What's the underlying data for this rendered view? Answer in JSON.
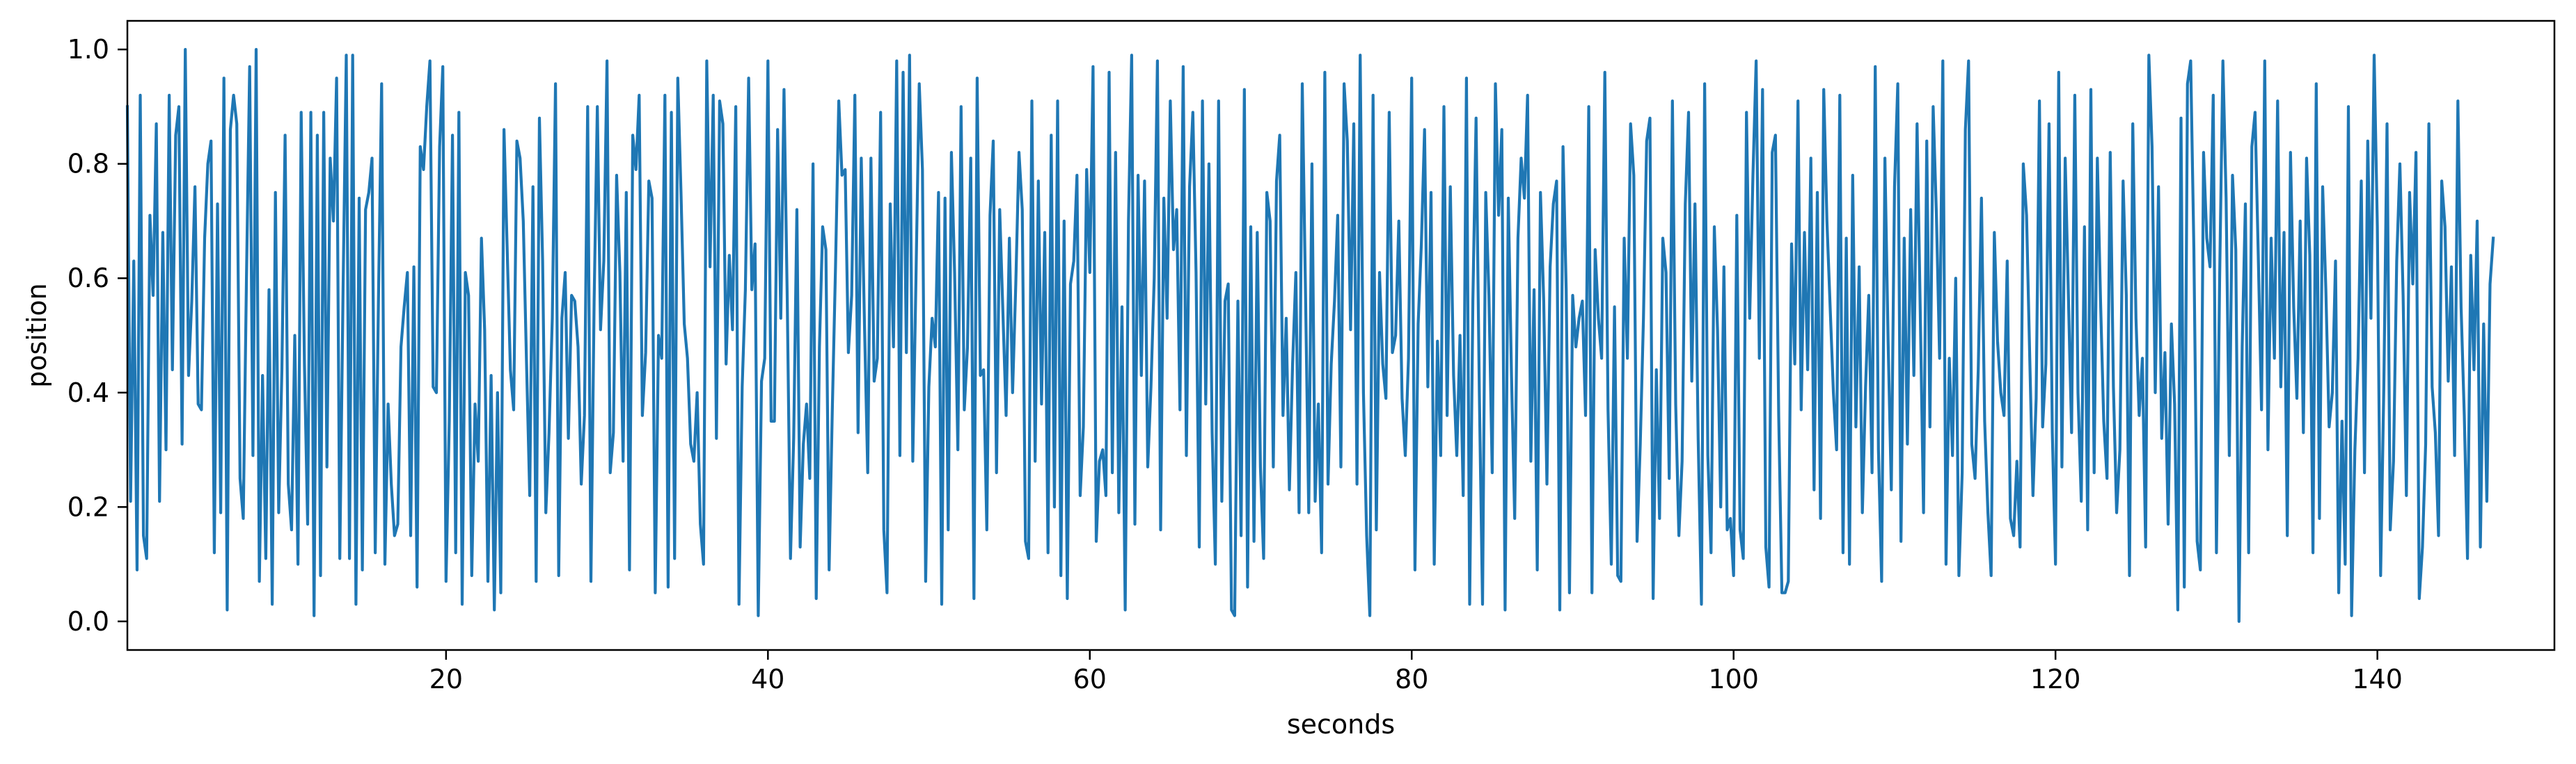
{
  "chart_data": {
    "type": "line",
    "title": "",
    "xlabel": "seconds",
    "ylabel": "position",
    "xlim": [
      0.2,
      151.0
    ],
    "ylim": [
      -0.05,
      1.05
    ],
    "xticks": [
      20,
      40,
      60,
      80,
      100,
      120,
      140
    ],
    "yticks": [
      0.0,
      0.2,
      0.4,
      0.6,
      0.8,
      1.0
    ],
    "xtick_labels": [
      "20",
      "40",
      "60",
      "80",
      "100",
      "120",
      "140"
    ],
    "ytick_labels": [
      "0.0",
      "0.2",
      "0.4",
      "0.6",
      "0.8",
      "1.0"
    ],
    "grid": false,
    "legend": "none",
    "series": [
      {
        "color": "#1f77b4",
        "x_start": 0.2,
        "x_step": 0.2,
        "values": [
          0.9,
          0.21,
          0.63,
          0.09,
          0.92,
          0.15,
          0.11,
          0.71,
          0.57,
          0.87,
          0.21,
          0.68,
          0.3,
          0.92,
          0.44,
          0.85,
          0.9,
          0.31,
          1.0,
          0.43,
          0.56,
          0.76,
          0.38,
          0.37,
          0.67,
          0.8,
          0.84,
          0.12,
          0.73,
          0.19,
          0.95,
          0.02,
          0.86,
          0.92,
          0.87,
          0.25,
          0.18,
          0.6,
          0.97,
          0.29,
          1.0,
          0.07,
          0.43,
          0.11,
          0.58,
          0.03,
          0.75,
          0.19,
          0.44,
          0.85,
          0.24,
          0.16,
          0.5,
          0.1,
          0.89,
          0.45,
          0.17,
          0.89,
          0.01,
          0.85,
          0.08,
          0.89,
          0.27,
          0.81,
          0.7,
          0.95,
          0.11,
          0.58,
          0.99,
          0.11,
          0.99,
          0.03,
          0.74,
          0.09,
          0.72,
          0.75,
          0.81,
          0.12,
          0.56,
          0.94,
          0.1,
          0.38,
          0.24,
          0.15,
          0.17,
          0.48,
          0.55,
          0.61,
          0.15,
          0.62,
          0.06,
          0.83,
          0.79,
          0.9,
          0.98,
          0.41,
          0.4,
          0.83,
          0.97,
          0.07,
          0.35,
          0.85,
          0.12,
          0.89,
          0.03,
          0.61,
          0.57,
          0.08,
          0.38,
          0.28,
          0.67,
          0.51,
          0.07,
          0.43,
          0.02,
          0.4,
          0.05,
          0.86,
          0.65,
          0.44,
          0.37,
          0.84,
          0.81,
          0.7,
          0.45,
          0.22,
          0.76,
          0.07,
          0.88,
          0.63,
          0.19,
          0.33,
          0.53,
          0.94,
          0.08,
          0.53,
          0.61,
          0.32,
          0.57,
          0.56,
          0.48,
          0.24,
          0.36,
          0.9,
          0.07,
          0.56,
          0.9,
          0.51,
          0.63,
          0.98,
          0.26,
          0.33,
          0.78,
          0.61,
          0.28,
          0.75,
          0.09,
          0.85,
          0.79,
          0.92,
          0.36,
          0.47,
          0.77,
          0.74,
          0.05,
          0.5,
          0.46,
          0.92,
          0.06,
          0.89,
          0.11,
          0.95,
          0.75,
          0.52,
          0.46,
          0.31,
          0.28,
          0.4,
          0.17,
          0.1,
          0.98,
          0.62,
          0.92,
          0.32,
          0.91,
          0.87,
          0.45,
          0.64,
          0.51,
          0.9,
          0.03,
          0.41,
          0.58,
          0.95,
          0.58,
          0.66,
          0.01,
          0.42,
          0.46,
          0.98,
          0.35,
          0.35,
          0.86,
          0.53,
          0.93,
          0.56,
          0.11,
          0.32,
          0.72,
          0.13,
          0.31,
          0.38,
          0.25,
          0.8,
          0.04,
          0.48,
          0.69,
          0.65,
          0.09,
          0.37,
          0.62,
          0.91,
          0.78,
          0.79,
          0.47,
          0.57,
          0.92,
          0.33,
          0.81,
          0.52,
          0.26,
          0.81,
          0.42,
          0.46,
          0.89,
          0.16,
          0.05,
          0.73,
          0.48,
          0.98,
          0.29,
          0.96,
          0.47,
          0.99,
          0.28,
          0.6,
          0.94,
          0.79,
          0.07,
          0.41,
          0.53,
          0.48,
          0.75,
          0.03,
          0.74,
          0.16,
          0.82,
          0.61,
          0.3,
          0.9,
          0.37,
          0.48,
          0.81,
          0.04,
          0.95,
          0.43,
          0.44,
          0.16,
          0.71,
          0.84,
          0.26,
          0.72,
          0.54,
          0.36,
          0.67,
          0.4,
          0.59,
          0.82,
          0.72,
          0.14,
          0.11,
          0.91,
          0.28,
          0.77,
          0.38,
          0.68,
          0.12,
          0.85,
          0.2,
          0.91,
          0.08,
          0.7,
          0.04,
          0.59,
          0.63,
          0.78,
          0.22,
          0.34,
          0.79,
          0.61,
          0.97,
          0.14,
          0.28,
          0.3,
          0.22,
          0.96,
          0.26,
          0.82,
          0.19,
          0.55,
          0.02,
          0.7,
          0.99,
          0.17,
          0.78,
          0.43,
          0.77,
          0.27,
          0.41,
          0.6,
          0.98,
          0.16,
          0.74,
          0.53,
          0.91,
          0.65,
          0.72,
          0.37,
          0.97,
          0.29,
          0.76,
          0.89,
          0.61,
          0.13,
          0.91,
          0.38,
          0.8,
          0.33,
          0.1,
          0.91,
          0.21,
          0.56,
          0.59,
          0.02,
          0.01,
          0.56,
          0.15,
          0.93,
          0.06,
          0.69,
          0.14,
          0.68,
          0.27,
          0.11,
          0.75,
          0.7,
          0.27,
          0.77,
          0.85,
          0.36,
          0.53,
          0.23,
          0.45,
          0.61,
          0.19,
          0.94,
          0.58,
          0.19,
          0.8,
          0.21,
          0.38,
          0.12,
          0.96,
          0.24,
          0.45,
          0.56,
          0.71,
          0.27,
          0.94,
          0.84,
          0.51,
          0.87,
          0.24,
          0.99,
          0.4,
          0.15,
          0.01,
          0.92,
          0.16,
          0.61,
          0.45,
          0.39,
          0.89,
          0.47,
          0.5,
          0.7,
          0.39,
          0.29,
          0.46,
          0.95,
          0.09,
          0.52,
          0.66,
          0.86,
          0.41,
          0.75,
          0.1,
          0.49,
          0.29,
          0.9,
          0.36,
          0.76,
          0.43,
          0.29,
          0.5,
          0.22,
          0.95,
          0.03,
          0.56,
          0.88,
          0.4,
          0.03,
          0.75,
          0.57,
          0.26,
          0.94,
          0.71,
          0.86,
          0.02,
          0.74,
          0.43,
          0.18,
          0.67,
          0.81,
          0.74,
          0.92,
          0.28,
          0.58,
          0.09,
          0.75,
          0.56,
          0.24,
          0.62,
          0.73,
          0.77,
          0.02,
          0.83,
          0.58,
          0.05,
          0.57,
          0.48,
          0.53,
          0.56,
          0.36,
          0.9,
          0.05,
          0.65,
          0.53,
          0.46,
          0.96,
          0.37,
          0.1,
          0.55,
          0.08,
          0.07,
          0.67,
          0.46,
          0.87,
          0.78,
          0.14,
          0.31,
          0.53,
          0.84,
          0.88,
          0.04,
          0.44,
          0.18,
          0.67,
          0.61,
          0.25,
          0.91,
          0.38,
          0.15,
          0.28,
          0.73,
          0.89,
          0.42,
          0.73,
          0.32,
          0.03,
          0.94,
          0.29,
          0.12,
          0.69,
          0.51,
          0.2,
          0.62,
          0.16,
          0.18,
          0.08,
          0.71,
          0.16,
          0.11,
          0.89,
          0.53,
          0.78,
          0.98,
          0.46,
          0.93,
          0.13,
          0.06,
          0.82,
          0.85,
          0.36,
          0.05,
          0.05,
          0.07,
          0.66,
          0.45,
          0.91,
          0.37,
          0.68,
          0.44,
          0.81,
          0.23,
          0.75,
          0.18,
          0.93,
          0.7,
          0.55,
          0.4,
          0.3,
          0.92,
          0.12,
          0.67,
          0.1,
          0.78,
          0.34,
          0.62,
          0.19,
          0.41,
          0.57,
          0.26,
          0.97,
          0.3,
          0.07,
          0.81,
          0.49,
          0.23,
          0.76,
          0.94,
          0.14,
          0.67,
          0.31,
          0.72,
          0.43,
          0.87,
          0.54,
          0.19,
          0.84,
          0.34,
          0.9,
          0.71,
          0.46,
          0.98,
          0.1,
          0.46,
          0.29,
          0.6,
          0.08,
          0.26,
          0.86,
          0.98,
          0.31,
          0.25,
          0.44,
          0.74,
          0.35,
          0.19,
          0.08,
          0.68,
          0.49,
          0.4,
          0.36,
          0.63,
          0.18,
          0.15,
          0.28,
          0.13,
          0.8,
          0.71,
          0.46,
          0.22,
          0.39,
          0.91,
          0.34,
          0.45,
          0.87,
          0.33,
          0.1,
          0.96,
          0.27,
          0.81,
          0.57,
          0.33,
          0.92,
          0.4,
          0.21,
          0.69,
          0.16,
          0.93,
          0.26,
          0.81,
          0.56,
          0.35,
          0.25,
          0.82,
          0.41,
          0.19,
          0.3,
          0.77,
          0.57,
          0.08,
          0.87,
          0.53,
          0.36,
          0.46,
          0.13,
          0.99,
          0.83,
          0.4,
          0.76,
          0.32,
          0.47,
          0.17,
          0.52,
          0.38,
          0.02,
          0.88,
          0.06,
          0.94,
          0.98,
          0.65,
          0.14,
          0.09,
          0.82,
          0.67,
          0.62,
          0.92,
          0.12,
          0.6,
          0.98,
          0.74,
          0.29,
          0.78,
          0.65,
          0.0,
          0.48,
          0.73,
          0.12,
          0.83,
          0.89,
          0.64,
          0.37,
          0.98,
          0.3,
          0.67,
          0.46,
          0.91,
          0.41,
          0.68,
          0.15,
          0.82,
          0.55,
          0.39,
          0.7,
          0.33,
          0.81,
          0.64,
          0.12,
          0.94,
          0.18,
          0.76,
          0.58,
          0.34,
          0.4,
          0.63,
          0.05,
          0.35,
          0.1,
          0.9,
          0.01,
          0.3,
          0.46,
          0.77,
          0.26,
          0.84,
          0.53,
          0.99,
          0.69,
          0.08,
          0.41,
          0.87,
          0.16,
          0.28,
          0.63,
          0.8,
          0.57,
          0.22,
          0.75,
          0.59,
          0.82,
          0.04,
          0.13,
          0.31,
          0.87,
          0.41,
          0.33,
          0.15,
          0.77,
          0.69,
          0.42,
          0.62,
          0.29,
          0.91,
          0.55,
          0.36,
          0.11,
          0.64,
          0.44,
          0.7,
          0.13,
          0.52,
          0.21,
          0.59,
          0.67
        ]
      }
    ]
  }
}
